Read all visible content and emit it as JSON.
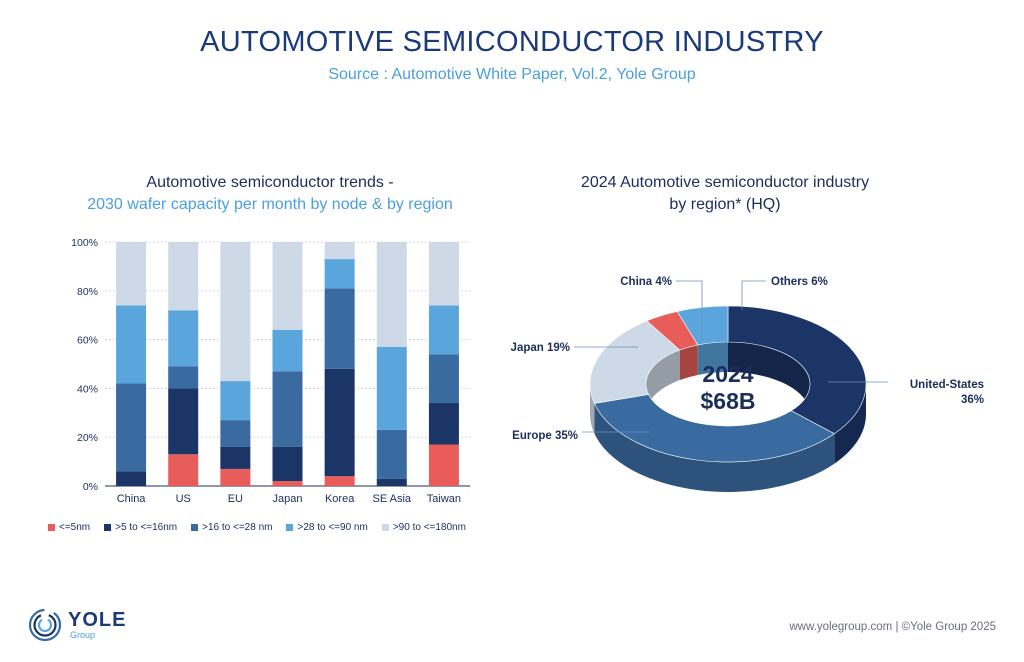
{
  "header": {
    "title": "AUTOMOTIVE SEMICONDUCTOR INDUSTRY",
    "subtitle": "Source : Automotive White Paper, Vol.2, Yole Group"
  },
  "colors": {
    "le5nm": "#e85d5a",
    "5to16": "#1b3566",
    "16to28": "#3a6ba0",
    "28to90": "#5aa5dc",
    "90to180": "#cdd9e6"
  },
  "chart_data": [
    {
      "type": "bar",
      "stacked": true,
      "title": "Automotive semiconductor trends -",
      "subtitle": "2030 wafer capacity per month by node & by region",
      "categories": [
        "China",
        "US",
        "EU",
        "Japan",
        "Korea",
        "SE Asia",
        "Taiwan"
      ],
      "ylim": [
        0,
        100
      ],
      "yticks": [
        "0%",
        "20%",
        "40%",
        "60%",
        "80%",
        "100%"
      ],
      "grid": true,
      "legend_position": "bottom",
      "series": [
        {
          "name": "<=5nm",
          "color": "#e85d5a",
          "values": [
            0,
            13,
            7,
            2,
            4,
            0,
            17
          ]
        },
        {
          "name": ">5 to <=16nm",
          "color": "#1b3566",
          "values": [
            6,
            27,
            9,
            14,
            44,
            3,
            17
          ]
        },
        {
          "name": ">16 to <=28 nm",
          "color": "#3a6ba0",
          "values": [
            36,
            9,
            11,
            31,
            33,
            20,
            20
          ]
        },
        {
          "name": ">28 to <=90 nm",
          "color": "#5aa5dc",
          "values": [
            32,
            23,
            16,
            17,
            12,
            34,
            20
          ]
        },
        {
          "name": ">90 to <=180nm",
          "color": "#cdd9e6",
          "values": [
            26,
            28,
            57,
            36,
            7,
            43,
            26
          ]
        }
      ]
    },
    {
      "type": "pie",
      "donut": true,
      "title": "2024 Automotive semiconductor industry",
      "subtitle": "by region* (HQ)",
      "center_label": {
        "year": "2024",
        "value": "$68B"
      },
      "slices": [
        {
          "label": "United-States",
          "pct_label": "36%",
          "value": 36,
          "color": "#1b3566"
        },
        {
          "label": "Europe",
          "pct_label": "35%",
          "value": 35,
          "color": "#3a6ba0"
        },
        {
          "label": "Japan",
          "pct_label": "19%",
          "value": 19,
          "color": "#cdd9e6"
        },
        {
          "label": "China",
          "pct_label": "4%",
          "value": 4,
          "color": "#e85d5a"
        },
        {
          "label": "Others",
          "pct_label": "6%",
          "value": 6,
          "color": "#5aa5dc"
        }
      ],
      "annotations": {
        "china": "China 4%",
        "others": "Others 6%",
        "japan": "Japan 19%",
        "europe": "Europe 35%",
        "us_line1": "United-States",
        "us_line2": "36%"
      }
    }
  ],
  "footer": {
    "text": "www.yolegroup.com | ©Yole Group 2025",
    "logo_name": "YOLE",
    "logo_sub": "Group"
  }
}
